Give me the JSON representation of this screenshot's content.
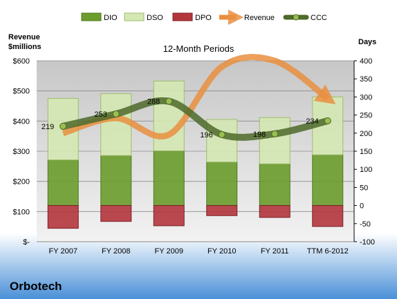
{
  "company": "Orbotech",
  "chart_data": {
    "type": "bar",
    "title": "12-Month Periods",
    "left_axis_title": "Revenue\n$millions",
    "right_axis_title": "Days",
    "categories": [
      "FY 2007",
      "FY 2008",
      "FY 2009",
      "FY 2010",
      "FY 2011",
      "TTM 6-2012"
    ],
    "left_ticks": [
      "$-",
      "$100",
      "$200",
      "$300",
      "$400",
      "$500",
      "$600"
    ],
    "right_ticks": [
      "-100",
      "-50",
      "0",
      "50",
      "100",
      "150",
      "200",
      "250",
      "300",
      "350",
      "400"
    ],
    "ylim_left": [
      0,
      600
    ],
    "ylim_right": [
      -100,
      400
    ],
    "legend": [
      "DIO",
      "DSO",
      "DPO",
      "Revenue",
      "CCC"
    ],
    "legend_position": "top",
    "grid": true,
    "series": [
      {
        "name": "DIO",
        "values": [
          126,
          138,
          151,
          120,
          115,
          140
        ]
      },
      {
        "name": "DSO",
        "values": [
          170,
          171,
          193,
          118,
          128,
          160
        ]
      },
      {
        "name": "DPO",
        "values": [
          -63,
          -44,
          -56,
          -28,
          -33,
          -58
        ]
      },
      {
        "name": "Revenue",
        "values": [
          360,
          410,
          355,
          580,
          600,
          475
        ]
      },
      {
        "name": "CCC",
        "values": [
          219,
          253,
          288,
          196,
          198,
          234
        ]
      }
    ],
    "ccc_labels": [
      "219",
      "253",
      "288",
      "196",
      "198",
      "234"
    ],
    "colors": {
      "dio": "#6b9c2e",
      "dso": "#d5e8b3",
      "dpo": "#b3363d",
      "revenue": "#e98f3f",
      "ccc": "#4d6a2a"
    }
  }
}
